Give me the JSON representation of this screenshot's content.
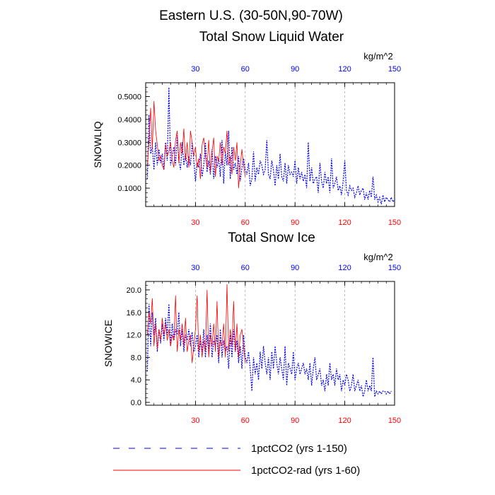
{
  "title_line1": "Eastern U.S. (30-50N,90-70W)",
  "legend": [
    {
      "label": "1pctCO2 (yrs 1-150)",
      "color": "#0000ff",
      "style": "dashed"
    },
    {
      "label": "1pctCO2-rad (yrs 1-60)",
      "color": "#ff0000",
      "style": "solid"
    }
  ],
  "chart_data": [
    {
      "type": "line",
      "title": "Total Snow Liquid Water",
      "units": "kg/m^2",
      "ylabel": "SNOWLIQ",
      "xlim": [
        0,
        150
      ],
      "ylim": [
        0.02,
        0.56
      ],
      "yticks": [
        0.1,
        0.2,
        0.3,
        0.4,
        0.5
      ],
      "ytick_labels": [
        "0.1000",
        "0.2000",
        "0.3000",
        "0.4000",
        "0.5000"
      ],
      "xticks": [
        30,
        60,
        90,
        120,
        150
      ],
      "xtick_labels": [
        "30",
        "60",
        "90",
        "120",
        "150"
      ],
      "grid_x": [
        30,
        60,
        90,
        120
      ],
      "series": [
        {
          "name": "1pctCO2 (yrs 1-150)",
          "color": "#0000ff",
          "style": "dashed",
          "x_start": 1,
          "values": [
            0.14,
            0.42,
            0.25,
            0.28,
            0.18,
            0.3,
            0.2,
            0.27,
            0.21,
            0.25,
            0.18,
            0.3,
            0.22,
            0.54,
            0.2,
            0.24,
            0.28,
            0.2,
            0.33,
            0.22,
            0.18,
            0.3,
            0.2,
            0.25,
            0.19,
            0.24,
            0.2,
            0.3,
            0.22,
            0.13,
            0.21,
            0.19,
            0.25,
            0.15,
            0.2,
            0.3,
            0.17,
            0.22,
            0.16,
            0.27,
            0.14,
            0.24,
            0.19,
            0.23,
            0.15,
            0.31,
            0.12,
            0.26,
            0.2,
            0.35,
            0.14,
            0.28,
            0.18,
            0.21,
            0.16,
            0.24,
            0.13,
            0.19,
            0.23,
            0.18,
            0.16,
            0.21,
            0.11,
            0.14,
            0.26,
            0.13,
            0.19,
            0.16,
            0.22,
            0.2,
            0.16,
            0.18,
            0.31,
            0.16,
            0.14,
            0.22,
            0.18,
            0.11,
            0.2,
            0.14,
            0.25,
            0.15,
            0.13,
            0.21,
            0.12,
            0.2,
            0.16,
            0.17,
            0.15,
            0.22,
            0.12,
            0.19,
            0.14,
            0.17,
            0.13,
            0.16,
            0.1,
            0.3,
            0.13,
            0.19,
            0.12,
            0.14,
            0.15,
            0.08,
            0.21,
            0.13,
            0.1,
            0.17,
            0.12,
            0.15,
            0.08,
            0.23,
            0.1,
            0.12,
            0.15,
            0.09,
            0.11,
            0.07,
            0.13,
            0.22,
            0.09,
            0.07,
            0.11,
            0.09,
            0.1,
            0.06,
            0.08,
            0.11,
            0.07,
            0.09,
            0.1,
            0.05,
            0.08,
            0.05,
            0.09,
            0.06,
            0.15,
            0.05,
            0.07,
            0.04,
            0.06,
            0.03,
            0.07,
            0.04,
            0.06,
            0.05,
            0.04,
            0.06,
            0.04,
            0.05
          ]
        },
        {
          "name": "1pctCO2-rad (yrs 1-60)",
          "color": "#ff0000",
          "style": "solid",
          "x_start": 1,
          "values": [
            0.2,
            0.3,
            0.45,
            0.27,
            0.48,
            0.35,
            0.29,
            0.22,
            0.24,
            0.2,
            0.18,
            0.29,
            0.24,
            0.26,
            0.3,
            0.22,
            0.19,
            0.31,
            0.35,
            0.21,
            0.3,
            0.25,
            0.36,
            0.22,
            0.3,
            0.19,
            0.35,
            0.3,
            0.24,
            0.28,
            0.19,
            0.23,
            0.14,
            0.29,
            0.32,
            0.24,
            0.19,
            0.31,
            0.17,
            0.26,
            0.32,
            0.15,
            0.24,
            0.22,
            0.3,
            0.2,
            0.28,
            0.25,
            0.35,
            0.2,
            0.24,
            0.16,
            0.28,
            0.22,
            0.3,
            0.1,
            0.2,
            0.27,
            0.2,
            0.15
          ]
        }
      ]
    },
    {
      "type": "line",
      "title": "Total Snow Ice",
      "units": "kg/m^2",
      "ylabel": "SNOWICE",
      "xlim": [
        0,
        150
      ],
      "ylim": [
        -0.5,
        21.5
      ],
      "yticks": [
        0,
        4,
        8,
        12,
        16,
        20
      ],
      "ytick_labels": [
        "0.0",
        "4.0",
        "8.0",
        "12.0",
        "16.0",
        "20.0"
      ],
      "xticks": [
        30,
        60,
        90,
        120,
        150
      ],
      "xtick_labels": [
        "30",
        "60",
        "90",
        "120",
        "150"
      ],
      "grid_x": [
        30,
        60,
        90,
        120
      ],
      "series": [
        {
          "name": "1pctCO2 (yrs 1-150)",
          "color": "#0000ff",
          "style": "dashed",
          "x_start": 1,
          "values": [
            5.5,
            17.5,
            10,
            16,
            12,
            15,
            9,
            13,
            10.5,
            14,
            11,
            15,
            12,
            17.5,
            10,
            14,
            11,
            13,
            12,
            16,
            10,
            13,
            9,
            12,
            11,
            13,
            10,
            12.5,
            9,
            10,
            12,
            8,
            11,
            9,
            13,
            8,
            12,
            9,
            14,
            8,
            11,
            10,
            12,
            7,
            13,
            8,
            11,
            9,
            10,
            6,
            12,
            8,
            13,
            9,
            11,
            7,
            10,
            6,
            12,
            8,
            7,
            9,
            6,
            2,
            8,
            5,
            7,
            4,
            9,
            6,
            10,
            7,
            5,
            8,
            4,
            9,
            6,
            10,
            7,
            5,
            8,
            6,
            4,
            10,
            3,
            7,
            6,
            5,
            9,
            4,
            6,
            7,
            5,
            6,
            7,
            5,
            6,
            4,
            7,
            3,
            6,
            8,
            4,
            5,
            6,
            3,
            4,
            2,
            5,
            3,
            7,
            4,
            5,
            3,
            6,
            4,
            5,
            2,
            4,
            3,
            5,
            4,
            2,
            3,
            5,
            2,
            3,
            4,
            2,
            3,
            1,
            2,
            4,
            2,
            3,
            2,
            8,
            1,
            2,
            1.5,
            2,
            1.5,
            2,
            2,
            1.5,
            2,
            1.5,
            2
          ]
        },
        {
          "name": "1pctCO2-rad (yrs 1-60)",
          "color": "#ff0000",
          "style": "solid",
          "x_start": 1,
          "values": [
            12,
            16,
            14,
            18.5,
            10,
            14,
            9.5,
            13,
            11,
            15,
            12,
            14,
            11,
            13,
            10,
            12,
            11,
            19,
            9,
            13,
            11,
            14,
            10,
            15,
            9,
            11,
            12,
            7,
            10,
            13,
            19,
            9,
            12,
            8,
            11,
            9,
            20,
            8,
            12,
            10,
            14,
            9,
            18,
            8,
            11,
            10,
            14,
            8,
            21,
            9,
            13,
            10,
            18,
            9,
            14,
            8,
            12,
            13,
            10,
            7
          ]
        }
      ]
    }
  ]
}
